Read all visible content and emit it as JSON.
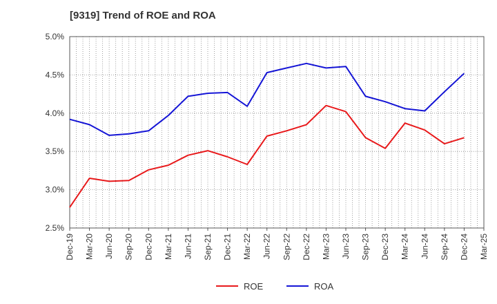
{
  "chart_data": {
    "type": "line",
    "title": "[9319]  Trend of ROE and ROA",
    "xlabel": "",
    "ylabel": "",
    "ylim": [
      2.5,
      5.0
    ],
    "yticks": [
      "2.5%",
      "3.0%",
      "3.5%",
      "4.0%",
      "4.5%",
      "5.0%"
    ],
    "ytick_values": [
      2.5,
      3.0,
      3.5,
      4.0,
      4.5,
      5.0
    ],
    "categories": [
      "Dec-19",
      "Mar-20",
      "Jun-20",
      "Sep-20",
      "Dec-20",
      "Mar-21",
      "Jun-21",
      "Sep-21",
      "Dec-21",
      "Mar-22",
      "Jun-22",
      "Sep-22",
      "Dec-22",
      "Mar-23",
      "Jun-23",
      "Sep-23",
      "Dec-23",
      "Mar-24",
      "Jun-24",
      "Sep-24",
      "Dec-24",
      "Mar-25"
    ],
    "grid": "on",
    "legend_position": "bottom",
    "series": [
      {
        "name": "ROE",
        "color": "#e8191b",
        "values": [
          2.77,
          3.15,
          3.11,
          3.12,
          3.26,
          3.32,
          3.45,
          3.51,
          3.43,
          3.33,
          3.7,
          3.77,
          3.85,
          4.1,
          4.02,
          3.68,
          3.54,
          3.87,
          3.78,
          3.6,
          3.68,
          null
        ]
      },
      {
        "name": "ROA",
        "color": "#1515d6",
        "values": [
          3.92,
          3.85,
          3.71,
          3.73,
          3.77,
          3.97,
          4.22,
          4.26,
          4.27,
          4.09,
          4.53,
          4.59,
          4.65,
          4.59,
          4.61,
          4.22,
          4.15,
          4.06,
          4.03,
          4.28,
          4.52,
          null
        ]
      }
    ]
  }
}
